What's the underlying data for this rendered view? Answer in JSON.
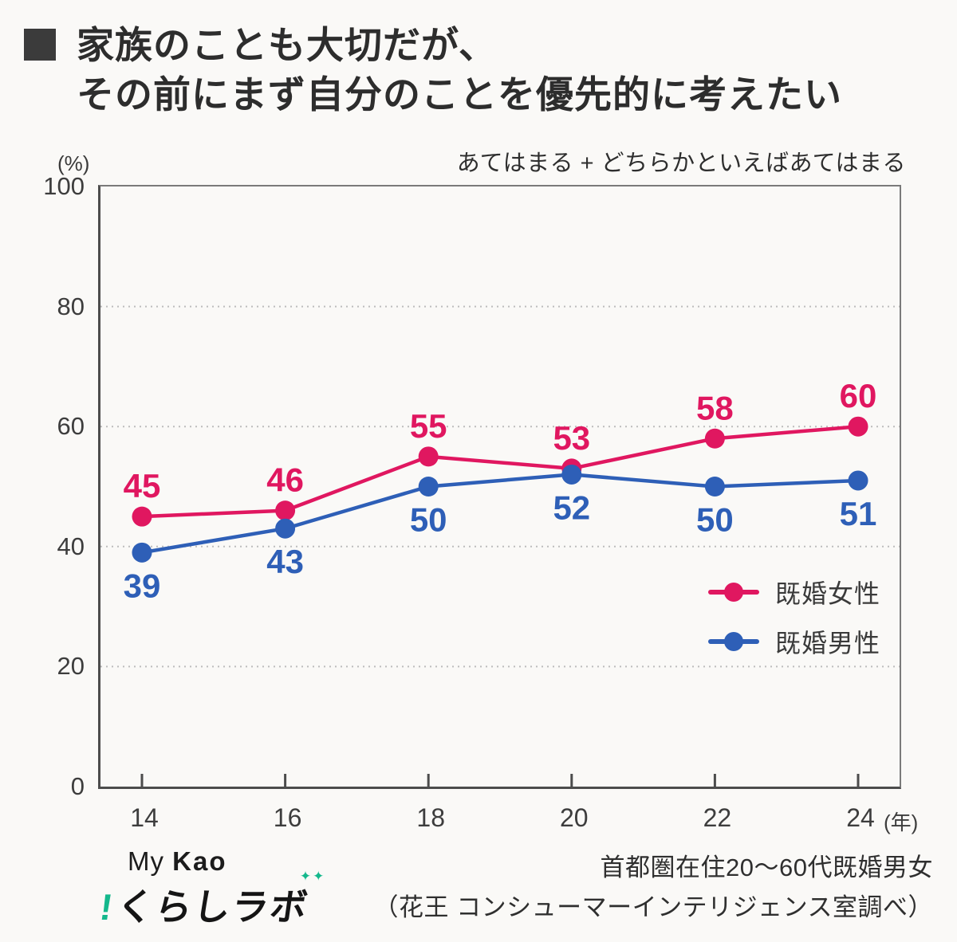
{
  "title": {
    "line1": "家族のことも大切だが、",
    "line2": "その前にまず自分のことを優先的に考えたい"
  },
  "measure_note": "あてはまる + どちらかといえばあてはまる",
  "y_unit_label": "(%)",
  "x_unit_label": "(年)",
  "colors": {
    "female_pink": "#e01760",
    "male_blue": "#2e5fb7",
    "grid": "#bdbdbd",
    "axis_dark": "#4c4c4c",
    "accent_green": "#14b88c",
    "title_text": "#2d2d2d"
  },
  "chart_data": {
    "type": "line",
    "x": [
      14,
      16,
      18,
      20,
      22,
      24
    ],
    "xlabel": "(年)",
    "ylabel": "(%)",
    "ylim": [
      0,
      100
    ],
    "yticks": [
      0,
      20,
      40,
      60,
      80,
      100
    ],
    "grid": "horizontal dotted at 20/40/60/80",
    "legend_position": "inside-right",
    "series": [
      {
        "name": "既婚女性",
        "color": "#e01760",
        "values": [
          45,
          46,
          55,
          53,
          58,
          60
        ],
        "label_position": "above"
      },
      {
        "name": "既婚男性",
        "color": "#2e5fb7",
        "values": [
          39,
          43,
          50,
          52,
          50,
          51
        ],
        "label_position": "below"
      }
    ]
  },
  "footer": {
    "logo_my": "My",
    "logo_kao": "Kao",
    "logo_mark": "!",
    "logo_sub": "くらしラボ",
    "logo_sparkles": "✦✦",
    "source_line1": "首都圏在住20〜60代既婚男女",
    "source_line2": "（花王 コンシューマーインテリジェンス室調べ）"
  }
}
